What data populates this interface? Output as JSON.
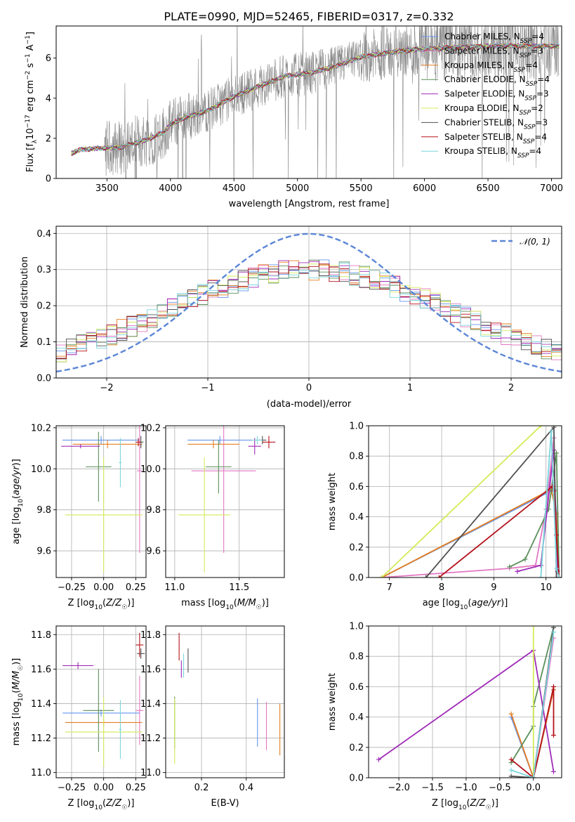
{
  "figure_title": "PLATE=0990, MJD=52465, FIBERID=0317, z=0.332",
  "model_colors": [
    "#6495ED",
    "#E377C2",
    "#E67E22",
    "#5A8F5A",
    "#A02CB8",
    "#D4EB58",
    "#505050",
    "#B5121B",
    "#7AD5DC"
  ],
  "chart_data": [
    {
      "id": "spectrum",
      "type": "line",
      "xlabel": "wavelength [Angstrom, rest frame]",
      "ylabel": "Flux [f_λ 10^-17 erg cm^-2 s^-1 A^-1]",
      "xlim": [
        3100,
        7080
      ],
      "ylim": [
        0,
        7.6
      ],
      "xticks": [
        3500,
        4000,
        4500,
        5000,
        5500,
        6000,
        6500,
        7000
      ],
      "yticks": [
        0,
        2,
        4,
        6
      ],
      "grid": false,
      "legend_position": "right",
      "legend": [
        {
          "label": "Chabrier MILES, N_SSP=4",
          "color": "#6495ED"
        },
        {
          "label": "Salpeter MILES, N_SSP=3",
          "color": "#E377C2"
        },
        {
          "label": "Kroupa MILES, N_SSP=4",
          "color": "#E67E22"
        },
        {
          "label": "Chabrier ELODIE, N_SSP=4",
          "color": "#5A8F5A"
        },
        {
          "label": "Salpeter ELODIE, N_SSP=3",
          "color": "#A02CB8"
        },
        {
          "label": "Kroupa ELODIE, N_SSP=2",
          "color": "#D4EB58"
        },
        {
          "label": "Chabrier STELIB, N_SSP=3",
          "color": "#505050"
        },
        {
          "label": "Salpeter STELIB, N_SSP=4",
          "color": "#B5121B"
        },
        {
          "label": "Kroupa STELIB, N_SSP=4",
          "color": "#7AD5DC"
        }
      ],
      "continuum": [
        [
          3220,
          1.25
        ],
        [
          3300,
          1.45
        ],
        [
          3450,
          1.5
        ],
        [
          3600,
          1.55
        ],
        [
          3800,
          1.9
        ],
        [
          3950,
          2.3
        ],
        [
          4000,
          2.7
        ],
        [
          4100,
          3.0
        ],
        [
          4300,
          3.4
        ],
        [
          4500,
          4.1
        ],
        [
          4700,
          4.6
        ],
        [
          4900,
          5.1
        ],
        [
          5100,
          5.25
        ],
        [
          5300,
          5.6
        ],
        [
          5500,
          6.05
        ],
        [
          5800,
          6.35
        ],
        [
          6000,
          6.45
        ],
        [
          6300,
          6.55
        ],
        [
          6600,
          6.6
        ],
        [
          7000,
          6.6
        ]
      ],
      "data_range": [
        3220,
        7060
      ]
    },
    {
      "id": "residuals",
      "type": "line",
      "xlabel": "(data-model)/error",
      "ylabel": "Normed distribution",
      "xlim": [
        -2.5,
        2.5
      ],
      "ylim": [
        0,
        0.42
      ],
      "xticks": [
        -2,
        -1,
        0,
        1,
        2
      ],
      "yticks": [
        0.0,
        0.1,
        0.2,
        0.3,
        0.4
      ],
      "grid": true,
      "legend_position": "top-right",
      "reference": {
        "label": "𝒩(0, 1)",
        "color": "#5B86D6",
        "style": "dashed"
      },
      "bin_width": 0.1
    },
    {
      "id": "age_vs_Z",
      "type": "scatter",
      "xlabel": "Z [log10(Z/Z☉)]",
      "ylabel": "age [log10(age/yr)]",
      "xlim": [
        -0.37,
        0.33
      ],
      "ylim": [
        9.47,
        10.21
      ],
      "xticks": [
        -0.25,
        0.0,
        0.25
      ],
      "yticks": [
        9.6,
        9.8,
        10.0,
        10.2
      ],
      "grid": true,
      "points": [
        {
          "x": -0.02,
          "y": 10.14,
          "xerr": 0.3,
          "yerr": 0.02,
          "color": "#6495ED"
        },
        {
          "x": 0.28,
          "y": 9.99,
          "xerr": 0.02,
          "yerr": 0.4,
          "color": "#E377C2"
        },
        {
          "x": 0.03,
          "y": 10.12,
          "xerr": 0.27,
          "yerr": 0.02,
          "color": "#E67E22"
        },
        {
          "x": -0.04,
          "y": 10.01,
          "xerr": 0.1,
          "yerr": 0.17,
          "color": "#5A8F5A"
        },
        {
          "x": -0.18,
          "y": 10.11,
          "xerr": 0.15,
          "yerr": 0.01,
          "color": "#A02CB8"
        },
        {
          "x": 0.0,
          "y": 9.775,
          "xerr": 0.3,
          "yerr": 0.28,
          "color": "#D4EB58"
        },
        {
          "x": 0.29,
          "y": 10.13,
          "xerr": 0.02,
          "yerr": 0.03,
          "color": "#505050"
        },
        {
          "x": 0.27,
          "y": 10.13,
          "xerr": 0.02,
          "yerr": 0.02,
          "color": "#B5121B"
        },
        {
          "x": 0.13,
          "y": 10.03,
          "xerr": 0.01,
          "yerr": 0.12,
          "color": "#7AD5DC"
        }
      ]
    },
    {
      "id": "age_vs_mass",
      "type": "scatter",
      "xlabel": "mass [log10(M/M☉)]",
      "ylabel": "",
      "xlim": [
        10.93,
        11.85
      ],
      "ylim": [
        9.47,
        10.21
      ],
      "xticks": [
        11.0,
        11.5
      ],
      "yticks": [
        9.6,
        9.8,
        10.0,
        10.2
      ],
      "grid": true,
      "points": [
        {
          "x": 11.35,
          "y": 10.14,
          "xerr": 0.25,
          "yerr": 0.02,
          "color": "#6495ED"
        },
        {
          "x": 11.38,
          "y": 9.99,
          "xerr": 0.25,
          "yerr": 0.4,
          "color": "#E377C2"
        },
        {
          "x": 11.3,
          "y": 10.12,
          "xerr": 0.2,
          "yerr": 0.02,
          "color": "#E67E22"
        },
        {
          "x": 11.34,
          "y": 10.01,
          "xerr": 0.1,
          "yerr": 0.13,
          "color": "#5A8F5A"
        },
        {
          "x": 11.62,
          "y": 10.11,
          "xerr": 0.05,
          "yerr": 0.04,
          "color": "#A02CB8"
        },
        {
          "x": 11.23,
          "y": 9.775,
          "xerr": 0.2,
          "yerr": 0.28,
          "color": "#D4EB58"
        },
        {
          "x": 11.68,
          "y": 10.14,
          "xerr": 0.03,
          "yerr": 0.02,
          "color": "#505050"
        },
        {
          "x": 11.73,
          "y": 10.13,
          "xerr": 0.05,
          "yerr": 0.03,
          "color": "#B5121B"
        },
        {
          "x": 11.64,
          "y": 10.14,
          "xerr": 0.04,
          "yerr": 0.02,
          "color": "#7AD5DC"
        }
      ]
    },
    {
      "id": "weight_vs_age",
      "type": "line",
      "xlabel": "age [log10(age/yr)]",
      "ylabel": "mass weight",
      "xlim": [
        6.6,
        10.3
      ],
      "ylim": [
        0,
        1.0
      ],
      "xticks": [
        7,
        8,
        9,
        10
      ],
      "yticks": [
        0.0,
        0.2,
        0.4,
        0.6,
        0.8,
        1.0
      ],
      "grid": true,
      "series": [
        {
          "color": "#6495ED",
          "points": [
            [
              6.85,
              0.0
            ],
            [
              10.15,
              0.58
            ],
            [
              10.2,
              0.42
            ],
            [
              10.25,
              0.0
            ]
          ]
        },
        {
          "color": "#E377C2",
          "points": [
            [
              6.85,
              0.0
            ],
            [
              9.3,
              0.06
            ],
            [
              9.8,
              0.08
            ],
            [
              10.0,
              0.45
            ],
            [
              10.15,
              0.92
            ],
            [
              10.2,
              0.0
            ]
          ]
        },
        {
          "color": "#E67E22",
          "points": [
            [
              6.85,
              0.0
            ],
            [
              10.1,
              0.58
            ],
            [
              10.2,
              0.42
            ],
            [
              10.25,
              0.0
            ]
          ]
        },
        {
          "color": "#5A8F5A",
          "points": [
            [
              9.3,
              0.07
            ],
            [
              9.6,
              0.12
            ],
            [
              10.05,
              0.45
            ],
            [
              10.2,
              0.82
            ],
            [
              10.25,
              0.0
            ]
          ]
        },
        {
          "color": "#A02CB8",
          "points": [
            [
              9.45,
              0.04
            ],
            [
              9.9,
              0.08
            ],
            [
              10.15,
              0.84
            ],
            [
              10.22,
              0.04
            ]
          ]
        },
        {
          "color": "#D4EB58",
          "points": [
            [
              6.85,
              0.0
            ],
            [
              9.9,
              1.0
            ]
          ]
        },
        {
          "color": "#505050",
          "points": [
            [
              7.7,
              0.0
            ],
            [
              10.15,
              0.99
            ],
            [
              10.2,
              0.0
            ]
          ]
        },
        {
          "color": "#B5121B",
          "points": [
            [
              7.95,
              0.0
            ],
            [
              10.12,
              0.6
            ],
            [
              10.15,
              0.57
            ],
            [
              10.2,
              0.28
            ],
            [
              10.25,
              0.0
            ]
          ]
        },
        {
          "color": "#7AD5DC",
          "points": [
            [
              9.9,
              0.0
            ],
            [
              10.1,
              0.96
            ],
            [
              10.2,
              0.06
            ],
            [
              10.25,
              0.0
            ]
          ]
        }
      ]
    },
    {
      "id": "mass_vs_Z",
      "type": "scatter",
      "xlabel": "Z [log10(Z/Z☉)]",
      "ylabel": "mass [log10(M/M☉)]",
      "xlim": [
        -0.37,
        0.33
      ],
      "ylim": [
        10.97,
        11.85
      ],
      "xticks": [
        -0.25,
        0.0,
        0.25
      ],
      "yticks": [
        11.0,
        11.2,
        11.4,
        11.6,
        11.8
      ],
      "grid": true,
      "points": [
        {
          "x": -0.02,
          "y": 11.345,
          "xerr": 0.3,
          "yerr": 0.02,
          "color": "#6495ED"
        },
        {
          "x": 0.28,
          "y": 11.36,
          "xerr": 0.03,
          "yerr": 0.2,
          "color": "#E377C2"
        },
        {
          "x": 0.0,
          "y": 11.29,
          "xerr": 0.3,
          "yerr": 0.02,
          "color": "#E67E22"
        },
        {
          "x": -0.04,
          "y": 11.36,
          "xerr": 0.12,
          "yerr": 0.24,
          "color": "#5A8F5A"
        },
        {
          "x": -0.2,
          "y": 11.62,
          "xerr": 0.12,
          "yerr": 0.02,
          "color": "#A02CB8"
        },
        {
          "x": 0.0,
          "y": 11.235,
          "xerr": 0.3,
          "yerr": 0.2,
          "color": "#D4EB58"
        },
        {
          "x": 0.29,
          "y": 11.69,
          "xerr": 0.03,
          "yerr": 0.03,
          "color": "#505050"
        },
        {
          "x": 0.28,
          "y": 11.74,
          "xerr": 0.03,
          "yerr": 0.07,
          "color": "#B5121B"
        },
        {
          "x": 0.13,
          "y": 11.25,
          "xerr": 0.01,
          "yerr": 0.17,
          "color": "#7AD5DC"
        }
      ]
    },
    {
      "id": "mass_vs_EBV",
      "type": "scatter",
      "xlabel": "E(B-V)",
      "ylabel": "",
      "xlim": [
        0.04,
        0.57
      ],
      "ylim": [
        10.97,
        11.85
      ],
      "xticks": [
        0.2,
        0.4
      ],
      "yticks": [
        11.0,
        11.2,
        11.4,
        11.6,
        11.8
      ],
      "grid": true,
      "points": [
        {
          "x": 0.45,
          "y": 11.29,
          "xerr": 0,
          "yerr": 0.14,
          "color": "#6495ED"
        },
        {
          "x": 0.49,
          "y": 11.27,
          "xerr": 0,
          "yerr": 0.14,
          "color": "#E377C2"
        },
        {
          "x": 0.55,
          "y": 11.25,
          "xerr": 0,
          "yerr": 0.15,
          "color": "#E67E22"
        },
        {
          "x": 0.08,
          "y": 11.29,
          "xerr": 0,
          "yerr": 0.15,
          "color": "#5A8F5A"
        },
        {
          "x": 0.11,
          "y": 11.6,
          "xerr": 0,
          "yerr": 0.05,
          "color": "#A02CB8"
        },
        {
          "x": 0.08,
          "y": 11.24,
          "xerr": 0,
          "yerr": 0.19,
          "color": "#D4EB58"
        },
        {
          "x": 0.14,
          "y": 11.65,
          "xerr": 0,
          "yerr": 0.07,
          "color": "#505050"
        },
        {
          "x": 0.1,
          "y": 11.73,
          "xerr": 0,
          "yerr": 0.08,
          "color": "#B5121B"
        },
        {
          "x": 0.12,
          "y": 11.62,
          "xerr": 0,
          "yerr": 0.07,
          "color": "#7AD5DC"
        }
      ]
    },
    {
      "id": "weight_vs_Z",
      "type": "line",
      "xlabel": "Z [log10(Z/Z☉)]",
      "ylabel": "mass weight",
      "xlim": [
        -2.45,
        0.42
      ],
      "ylim": [
        0,
        1.0
      ],
      "xticks": [
        -2.0,
        -1.5,
        -1.0,
        -0.5,
        0.0
      ],
      "yticks": [
        0.0,
        0.2,
        0.4,
        0.6,
        0.8,
        1.0
      ],
      "grid": true,
      "series": [
        {
          "color": "#6495ED",
          "points": [
            [
              -0.33,
              0.4
            ],
            [
              0.0,
              0.0
            ],
            [
              0.3,
              0.58
            ]
          ]
        },
        {
          "color": "#E377C2",
          "points": [
            [
              0.0,
              0.0
            ],
            [
              0.3,
              0.92
            ]
          ]
        },
        {
          "color": "#E67E22",
          "points": [
            [
              -0.33,
              0.42
            ],
            [
              0.0,
              0.0
            ],
            [
              0.3,
              0.58
            ]
          ]
        },
        {
          "color": "#5A8F5A",
          "points": [
            [
              -0.33,
              0.1
            ],
            [
              0.0,
              0.34
            ],
            [
              0.0,
              0.47
            ],
            [
              0.3,
              0.99
            ]
          ]
        },
        {
          "color": "#A02CB8",
          "points": [
            [
              -2.3,
              0.12
            ],
            [
              0.0,
              0.84
            ],
            [
              0.3,
              0.04
            ]
          ]
        },
        {
          "color": "#D4EB58",
          "points": [
            [
              0.0,
              0.0
            ],
            [
              0.0,
              1.0
            ]
          ]
        },
        {
          "color": "#505050",
          "points": [
            [
              -0.33,
              0.01
            ],
            [
              0.0,
              0.0
            ],
            [
              0.3,
              0.99
            ]
          ]
        },
        {
          "color": "#B5121B",
          "points": [
            [
              -0.33,
              0.12
            ],
            [
              0.0,
              0.0
            ],
            [
              0.3,
              0.6
            ],
            [
              0.3,
              0.28
            ]
          ]
        },
        {
          "color": "#7AD5DC",
          "points": [
            [
              -0.33,
              0.05
            ],
            [
              0.0,
              0.0
            ],
            [
              0.3,
              0.96
            ]
          ]
        }
      ]
    }
  ]
}
